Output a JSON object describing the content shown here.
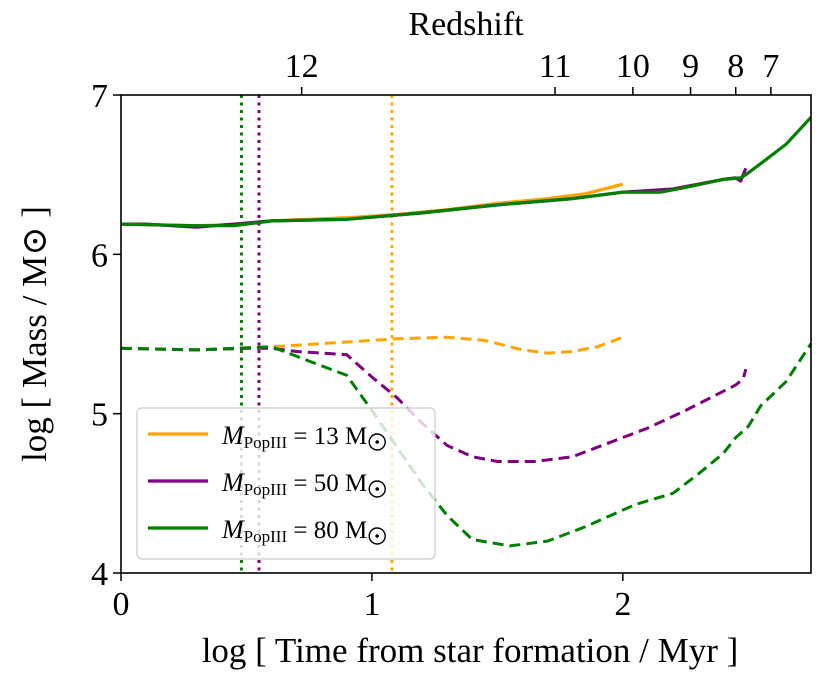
{
  "chart_data": {
    "type": "line",
    "xlabel": "log [ Time from star formation / Myr ]",
    "ylabel": "log [ Mass / M⊙ ]",
    "top_axis_title": "Redshift",
    "xlim": [
      0,
      2.75
    ],
    "ylim": [
      4,
      7
    ],
    "x_ticks": [
      0,
      1,
      2
    ],
    "y_ticks": [
      4,
      5,
      6,
      7
    ],
    "top_ticks": [
      {
        "label": "12",
        "x": 0.72
      },
      {
        "label": "11",
        "x": 1.73
      },
      {
        "label": "10",
        "x": 2.04
      },
      {
        "label": "9",
        "x": 2.27
      },
      {
        "label": "8",
        "x": 2.45
      },
      {
        "label": "7",
        "x": 2.59
      }
    ],
    "legend_position": "lower-left",
    "series": [
      {
        "name": "M_PopIII = 13 M⊙",
        "legend_main": "M",
        "legend_sub": "PopIII",
        "legend_value": " = 13 M",
        "color": "#FFA500",
        "vline_x": 1.08,
        "solid": [
          [
            0,
            6.19
          ],
          [
            0.3,
            6.18
          ],
          [
            0.5,
            6.19
          ],
          [
            0.6,
            6.21
          ],
          [
            0.9,
            6.23
          ],
          [
            1.1,
            6.25
          ],
          [
            1.3,
            6.28
          ],
          [
            1.5,
            6.32
          ],
          [
            1.7,
            6.35
          ],
          [
            1.85,
            6.38
          ],
          [
            1.95,
            6.42
          ],
          [
            2.0,
            6.44
          ]
        ],
        "dashed": [
          [
            0,
            5.41
          ],
          [
            0.3,
            5.4
          ],
          [
            0.5,
            5.41
          ],
          [
            0.7,
            5.43
          ],
          [
            0.9,
            5.45
          ],
          [
            1.1,
            5.47
          ],
          [
            1.3,
            5.48
          ],
          [
            1.45,
            5.46
          ],
          [
            1.6,
            5.4
          ],
          [
            1.7,
            5.38
          ],
          [
            1.8,
            5.39
          ],
          [
            1.9,
            5.42
          ],
          [
            2.0,
            5.48
          ]
        ]
      },
      {
        "name": "M_PopIII = 50 M⊙",
        "legend_main": "M",
        "legend_sub": "PopIII",
        "legend_value": " = 50 M",
        "color": "#800080",
        "vline_x": 0.55,
        "solid": [
          [
            0,
            6.19
          ],
          [
            0.1,
            6.19
          ],
          [
            0.3,
            6.17
          ],
          [
            0.45,
            6.19
          ],
          [
            0.6,
            6.21
          ],
          [
            0.9,
            6.22
          ],
          [
            1.2,
            6.26
          ],
          [
            1.5,
            6.31
          ],
          [
            1.8,
            6.35
          ],
          [
            2.0,
            6.39
          ],
          [
            2.1,
            6.4
          ],
          [
            2.2,
            6.41
          ],
          [
            2.3,
            6.44
          ],
          [
            2.4,
            6.47
          ],
          [
            2.45,
            6.48
          ],
          [
            2.47,
            6.46
          ],
          [
            2.49,
            6.54
          ]
        ],
        "dashed": [
          [
            0,
            5.41
          ],
          [
            0.3,
            5.4
          ],
          [
            0.5,
            5.41
          ],
          [
            0.6,
            5.41
          ],
          [
            0.7,
            5.39
          ],
          [
            0.9,
            5.37
          ],
          [
            1.0,
            5.23
          ],
          [
            1.1,
            5.1
          ],
          [
            1.2,
            4.94
          ],
          [
            1.3,
            4.8
          ],
          [
            1.4,
            4.73
          ],
          [
            1.5,
            4.7
          ],
          [
            1.65,
            4.7
          ],
          [
            1.8,
            4.73
          ],
          [
            1.95,
            4.82
          ],
          [
            2.1,
            4.91
          ],
          [
            2.25,
            5.02
          ],
          [
            2.35,
            5.1
          ],
          [
            2.45,
            5.18
          ],
          [
            2.48,
            5.22
          ],
          [
            2.49,
            5.28
          ]
        ]
      },
      {
        "name": "M_PopIII = 80 M⊙",
        "legend_main": "M",
        "legend_sub": "PopIII",
        "legend_value": " = 80 M",
        "color": "#008000",
        "vline_x": 0.48,
        "solid": [
          [
            0,
            6.19
          ],
          [
            0.3,
            6.18
          ],
          [
            0.45,
            6.18
          ],
          [
            0.55,
            6.2
          ],
          [
            0.6,
            6.21
          ],
          [
            0.9,
            6.22
          ],
          [
            1.2,
            6.26
          ],
          [
            1.5,
            6.31
          ],
          [
            1.8,
            6.35
          ],
          [
            2.0,
            6.39
          ],
          [
            2.1,
            6.39
          ],
          [
            2.15,
            6.39
          ],
          [
            2.25,
            6.42
          ],
          [
            2.4,
            6.47
          ],
          [
            2.47,
            6.48
          ],
          [
            2.49,
            6.5
          ],
          [
            2.55,
            6.57
          ],
          [
            2.65,
            6.69
          ],
          [
            2.75,
            6.86
          ]
        ],
        "dashed": [
          [
            0,
            5.41
          ],
          [
            0.3,
            5.4
          ],
          [
            0.45,
            5.41
          ],
          [
            0.6,
            5.42
          ],
          [
            0.75,
            5.33
          ],
          [
            0.9,
            5.24
          ],
          [
            1.0,
            5.02
          ],
          [
            1.1,
            4.79
          ],
          [
            1.2,
            4.56
          ],
          [
            1.3,
            4.36
          ],
          [
            1.4,
            4.21
          ],
          [
            1.55,
            4.17
          ],
          [
            1.7,
            4.2
          ],
          [
            1.85,
            4.29
          ],
          [
            1.95,
            4.36
          ],
          [
            2.05,
            4.43
          ],
          [
            2.2,
            4.5
          ],
          [
            2.3,
            4.62
          ],
          [
            2.4,
            4.75
          ],
          [
            2.45,
            4.85
          ],
          [
            2.5,
            4.92
          ],
          [
            2.55,
            5.05
          ],
          [
            2.65,
            5.2
          ],
          [
            2.75,
            5.44
          ]
        ]
      }
    ]
  }
}
